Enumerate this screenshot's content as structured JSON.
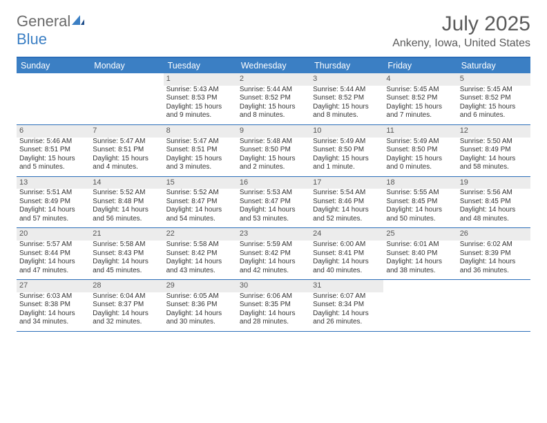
{
  "brand": {
    "text_a": "General",
    "text_b": "Blue",
    "logo_color": "#3b7fc4",
    "text_color": "#6a6a6a"
  },
  "title": "July 2025",
  "location": "Ankeny, Iowa, United States",
  "colors": {
    "header_bg": "#3b7fc4",
    "header_text": "#ffffff",
    "rule": "#2a6db8",
    "daynum_bg": "#ececec",
    "body_text": "#333333"
  },
  "fonts": {
    "title_size": 30,
    "location_size": 16,
    "day_header_size": 12.5,
    "cell_size": 10
  },
  "day_headers": [
    "Sunday",
    "Monday",
    "Tuesday",
    "Wednesday",
    "Thursday",
    "Friday",
    "Saturday"
  ],
  "weeks": [
    [
      {
        "num": "",
        "sunrise": "",
        "sunset": "",
        "daylight1": "",
        "daylight2": ""
      },
      {
        "num": "",
        "sunrise": "",
        "sunset": "",
        "daylight1": "",
        "daylight2": ""
      },
      {
        "num": "1",
        "sunrise": "Sunrise: 5:43 AM",
        "sunset": "Sunset: 8:53 PM",
        "daylight1": "Daylight: 15 hours",
        "daylight2": "and 9 minutes."
      },
      {
        "num": "2",
        "sunrise": "Sunrise: 5:44 AM",
        "sunset": "Sunset: 8:52 PM",
        "daylight1": "Daylight: 15 hours",
        "daylight2": "and 8 minutes."
      },
      {
        "num": "3",
        "sunrise": "Sunrise: 5:44 AM",
        "sunset": "Sunset: 8:52 PM",
        "daylight1": "Daylight: 15 hours",
        "daylight2": "and 8 minutes."
      },
      {
        "num": "4",
        "sunrise": "Sunrise: 5:45 AM",
        "sunset": "Sunset: 8:52 PM",
        "daylight1": "Daylight: 15 hours",
        "daylight2": "and 7 minutes."
      },
      {
        "num": "5",
        "sunrise": "Sunrise: 5:45 AM",
        "sunset": "Sunset: 8:52 PM",
        "daylight1": "Daylight: 15 hours",
        "daylight2": "and 6 minutes."
      }
    ],
    [
      {
        "num": "6",
        "sunrise": "Sunrise: 5:46 AM",
        "sunset": "Sunset: 8:51 PM",
        "daylight1": "Daylight: 15 hours",
        "daylight2": "and 5 minutes."
      },
      {
        "num": "7",
        "sunrise": "Sunrise: 5:47 AM",
        "sunset": "Sunset: 8:51 PM",
        "daylight1": "Daylight: 15 hours",
        "daylight2": "and 4 minutes."
      },
      {
        "num": "8",
        "sunrise": "Sunrise: 5:47 AM",
        "sunset": "Sunset: 8:51 PM",
        "daylight1": "Daylight: 15 hours",
        "daylight2": "and 3 minutes."
      },
      {
        "num": "9",
        "sunrise": "Sunrise: 5:48 AM",
        "sunset": "Sunset: 8:50 PM",
        "daylight1": "Daylight: 15 hours",
        "daylight2": "and 2 minutes."
      },
      {
        "num": "10",
        "sunrise": "Sunrise: 5:49 AM",
        "sunset": "Sunset: 8:50 PM",
        "daylight1": "Daylight: 15 hours",
        "daylight2": "and 1 minute."
      },
      {
        "num": "11",
        "sunrise": "Sunrise: 5:49 AM",
        "sunset": "Sunset: 8:50 PM",
        "daylight1": "Daylight: 15 hours",
        "daylight2": "and 0 minutes."
      },
      {
        "num": "12",
        "sunrise": "Sunrise: 5:50 AM",
        "sunset": "Sunset: 8:49 PM",
        "daylight1": "Daylight: 14 hours",
        "daylight2": "and 58 minutes."
      }
    ],
    [
      {
        "num": "13",
        "sunrise": "Sunrise: 5:51 AM",
        "sunset": "Sunset: 8:49 PM",
        "daylight1": "Daylight: 14 hours",
        "daylight2": "and 57 minutes."
      },
      {
        "num": "14",
        "sunrise": "Sunrise: 5:52 AM",
        "sunset": "Sunset: 8:48 PM",
        "daylight1": "Daylight: 14 hours",
        "daylight2": "and 56 minutes."
      },
      {
        "num": "15",
        "sunrise": "Sunrise: 5:52 AM",
        "sunset": "Sunset: 8:47 PM",
        "daylight1": "Daylight: 14 hours",
        "daylight2": "and 54 minutes."
      },
      {
        "num": "16",
        "sunrise": "Sunrise: 5:53 AM",
        "sunset": "Sunset: 8:47 PM",
        "daylight1": "Daylight: 14 hours",
        "daylight2": "and 53 minutes."
      },
      {
        "num": "17",
        "sunrise": "Sunrise: 5:54 AM",
        "sunset": "Sunset: 8:46 PM",
        "daylight1": "Daylight: 14 hours",
        "daylight2": "and 52 minutes."
      },
      {
        "num": "18",
        "sunrise": "Sunrise: 5:55 AM",
        "sunset": "Sunset: 8:45 PM",
        "daylight1": "Daylight: 14 hours",
        "daylight2": "and 50 minutes."
      },
      {
        "num": "19",
        "sunrise": "Sunrise: 5:56 AM",
        "sunset": "Sunset: 8:45 PM",
        "daylight1": "Daylight: 14 hours",
        "daylight2": "and 48 minutes."
      }
    ],
    [
      {
        "num": "20",
        "sunrise": "Sunrise: 5:57 AM",
        "sunset": "Sunset: 8:44 PM",
        "daylight1": "Daylight: 14 hours",
        "daylight2": "and 47 minutes."
      },
      {
        "num": "21",
        "sunrise": "Sunrise: 5:58 AM",
        "sunset": "Sunset: 8:43 PM",
        "daylight1": "Daylight: 14 hours",
        "daylight2": "and 45 minutes."
      },
      {
        "num": "22",
        "sunrise": "Sunrise: 5:58 AM",
        "sunset": "Sunset: 8:42 PM",
        "daylight1": "Daylight: 14 hours",
        "daylight2": "and 43 minutes."
      },
      {
        "num": "23",
        "sunrise": "Sunrise: 5:59 AM",
        "sunset": "Sunset: 8:42 PM",
        "daylight1": "Daylight: 14 hours",
        "daylight2": "and 42 minutes."
      },
      {
        "num": "24",
        "sunrise": "Sunrise: 6:00 AM",
        "sunset": "Sunset: 8:41 PM",
        "daylight1": "Daylight: 14 hours",
        "daylight2": "and 40 minutes."
      },
      {
        "num": "25",
        "sunrise": "Sunrise: 6:01 AM",
        "sunset": "Sunset: 8:40 PM",
        "daylight1": "Daylight: 14 hours",
        "daylight2": "and 38 minutes."
      },
      {
        "num": "26",
        "sunrise": "Sunrise: 6:02 AM",
        "sunset": "Sunset: 8:39 PM",
        "daylight1": "Daylight: 14 hours",
        "daylight2": "and 36 minutes."
      }
    ],
    [
      {
        "num": "27",
        "sunrise": "Sunrise: 6:03 AM",
        "sunset": "Sunset: 8:38 PM",
        "daylight1": "Daylight: 14 hours",
        "daylight2": "and 34 minutes."
      },
      {
        "num": "28",
        "sunrise": "Sunrise: 6:04 AM",
        "sunset": "Sunset: 8:37 PM",
        "daylight1": "Daylight: 14 hours",
        "daylight2": "and 32 minutes."
      },
      {
        "num": "29",
        "sunrise": "Sunrise: 6:05 AM",
        "sunset": "Sunset: 8:36 PM",
        "daylight1": "Daylight: 14 hours",
        "daylight2": "and 30 minutes."
      },
      {
        "num": "30",
        "sunrise": "Sunrise: 6:06 AM",
        "sunset": "Sunset: 8:35 PM",
        "daylight1": "Daylight: 14 hours",
        "daylight2": "and 28 minutes."
      },
      {
        "num": "31",
        "sunrise": "Sunrise: 6:07 AM",
        "sunset": "Sunset: 8:34 PM",
        "daylight1": "Daylight: 14 hours",
        "daylight2": "and 26 minutes."
      },
      {
        "num": "",
        "sunrise": "",
        "sunset": "",
        "daylight1": "",
        "daylight2": ""
      },
      {
        "num": "",
        "sunrise": "",
        "sunset": "",
        "daylight1": "",
        "daylight2": ""
      }
    ]
  ]
}
